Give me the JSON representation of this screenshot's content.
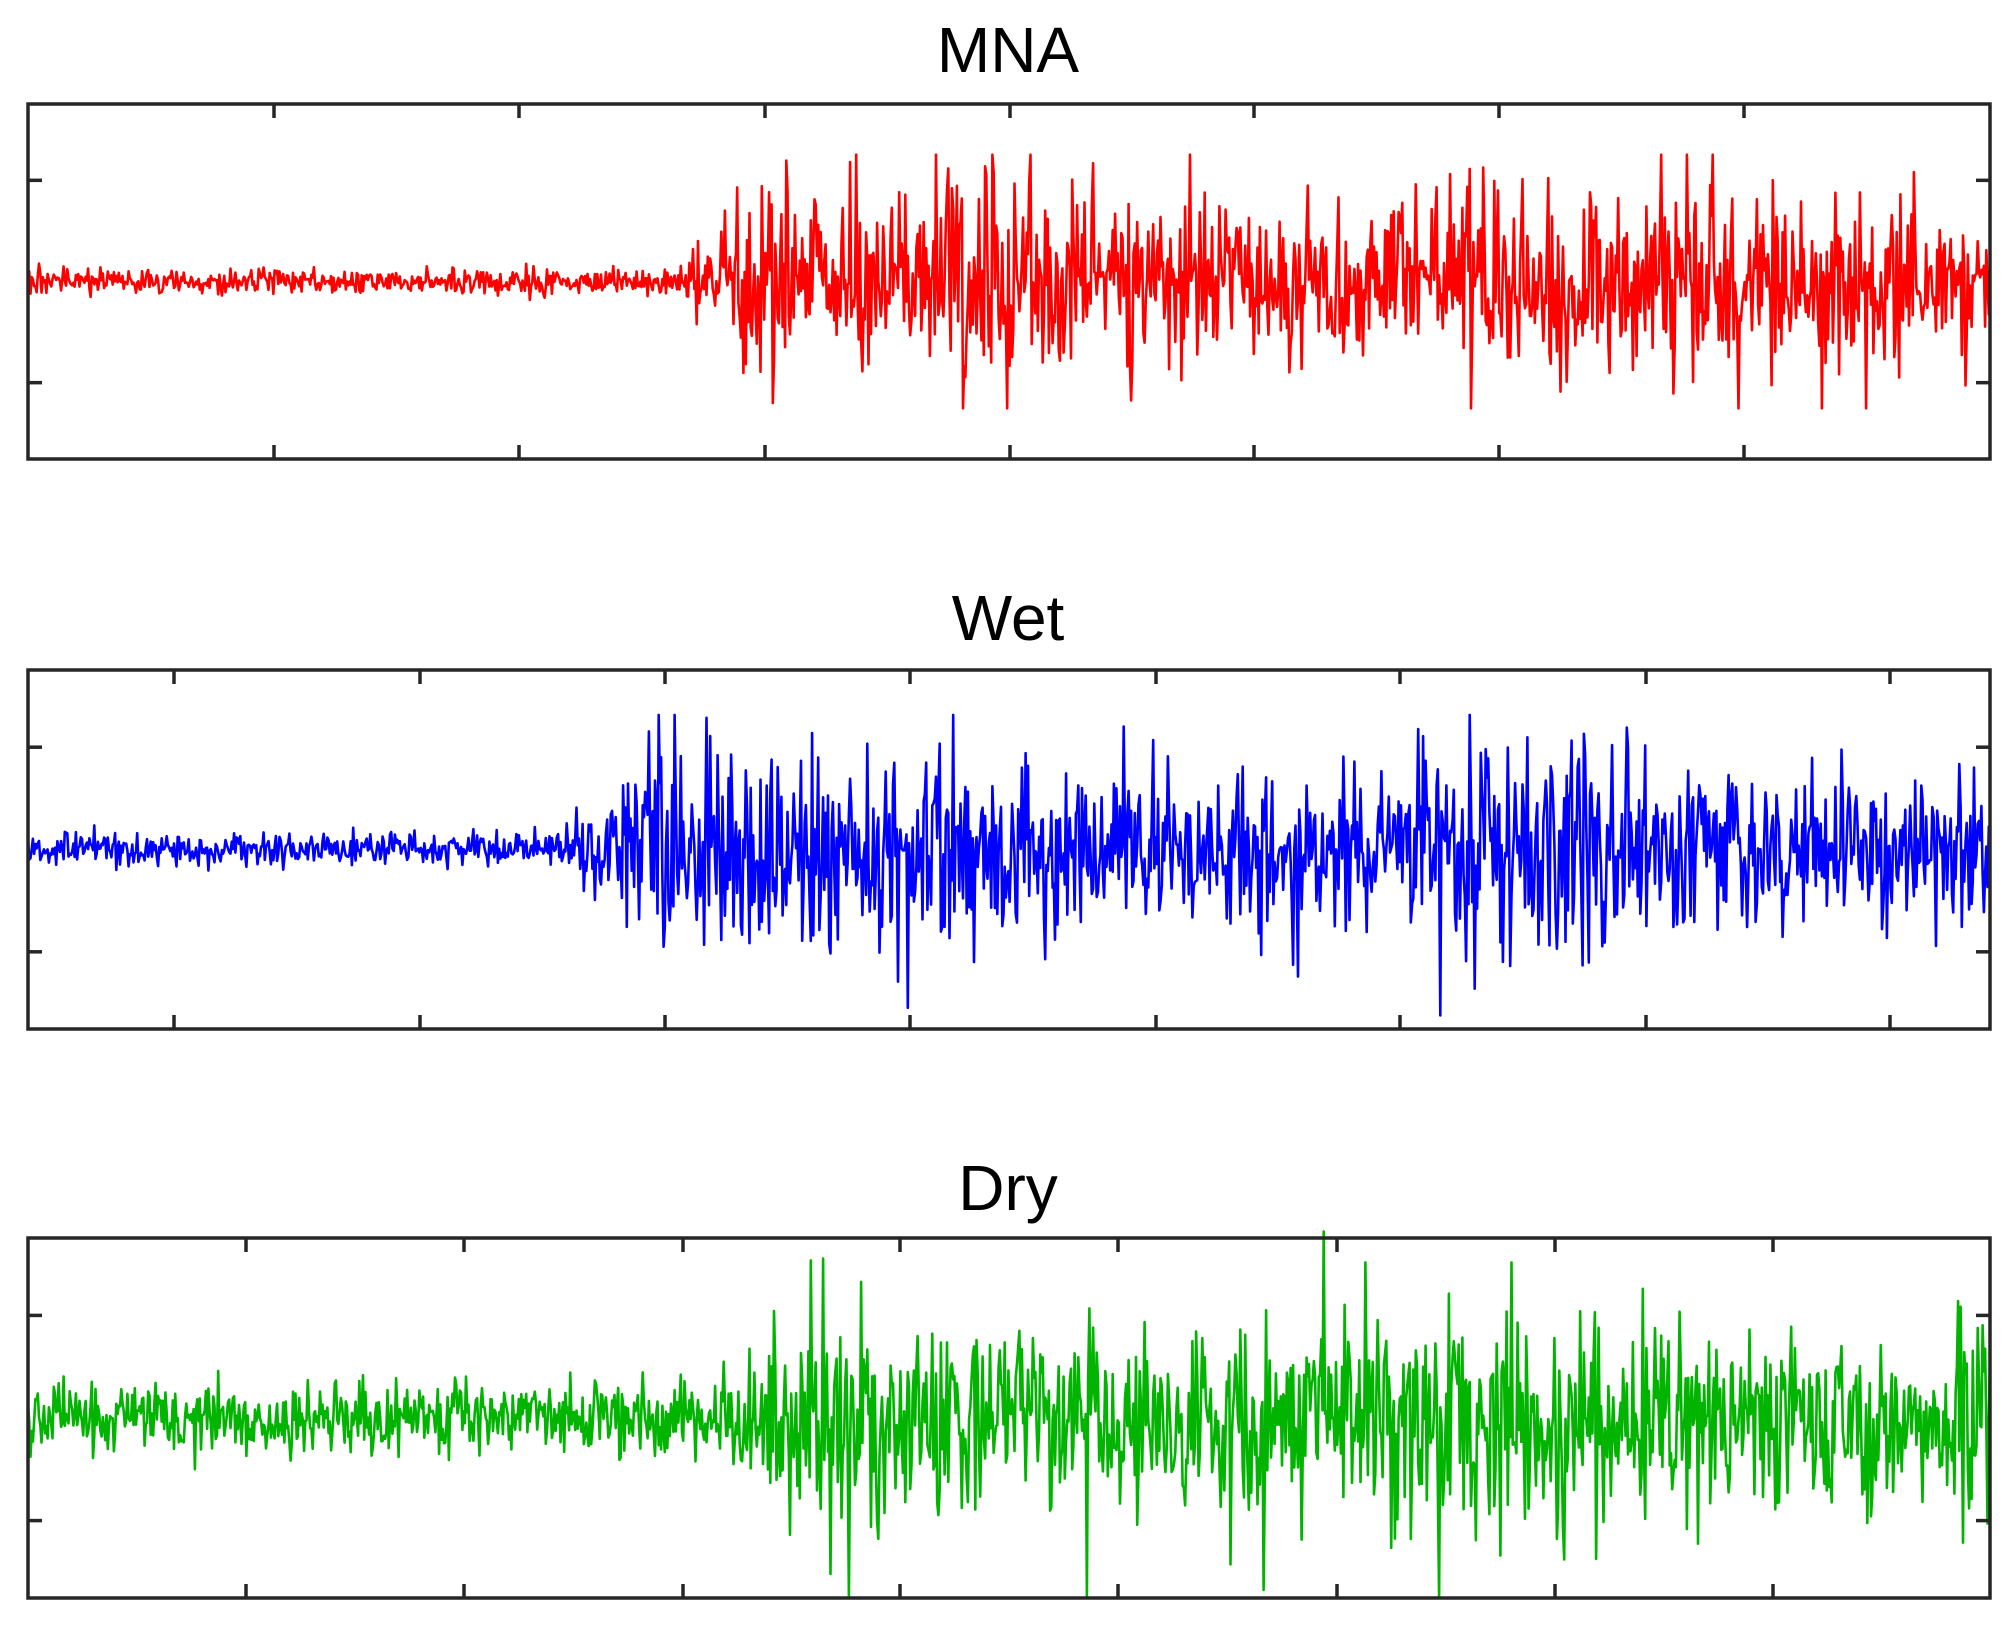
{
  "chart_data": [
    {
      "type": "line",
      "title": "MNA",
      "xlabel": "",
      "ylabel": "",
      "grid": false,
      "legend": "none",
      "color": "#ff0000",
      "x_ticks_count": 7,
      "y_ticks_count": 2,
      "ylim": [
        -1.4,
        1.4
      ],
      "signal": {
        "n_samples": 1600,
        "onset_fraction": 0.33,
        "noise_level_before": 0.05,
        "peak_level_after": 0.9,
        "min_value": -1.0,
        "max_value": 1.0
      }
    },
    {
      "type": "line",
      "title": "Wet",
      "xlabel": "",
      "ylabel": "",
      "grid": false,
      "legend": "none",
      "color": "#0000ff",
      "x_ticks_count": 7,
      "y_ticks_count": 2,
      "ylim": [
        -1.4,
        1.4
      ],
      "signal": {
        "n_samples": 1600,
        "onset_fraction": 0.27,
        "noise_level_before": 0.07,
        "peak_level_after": 0.9,
        "min_value": -1.35,
        "max_value": 1.05
      }
    },
    {
      "type": "line",
      "title": "Dry",
      "xlabel": "",
      "ylabel": "",
      "grid": false,
      "legend": "none",
      "color": "#00b400",
      "x_ticks_count": 7,
      "y_ticks_count": 2,
      "ylim": [
        -1.4,
        1.4
      ],
      "signal": {
        "n_samples": 1600,
        "onset_fraction": 0.35,
        "noise_level_before": 0.14,
        "peak_level_after": 1.0,
        "min_value": -1.4,
        "max_value": 1.45
      }
    }
  ]
}
